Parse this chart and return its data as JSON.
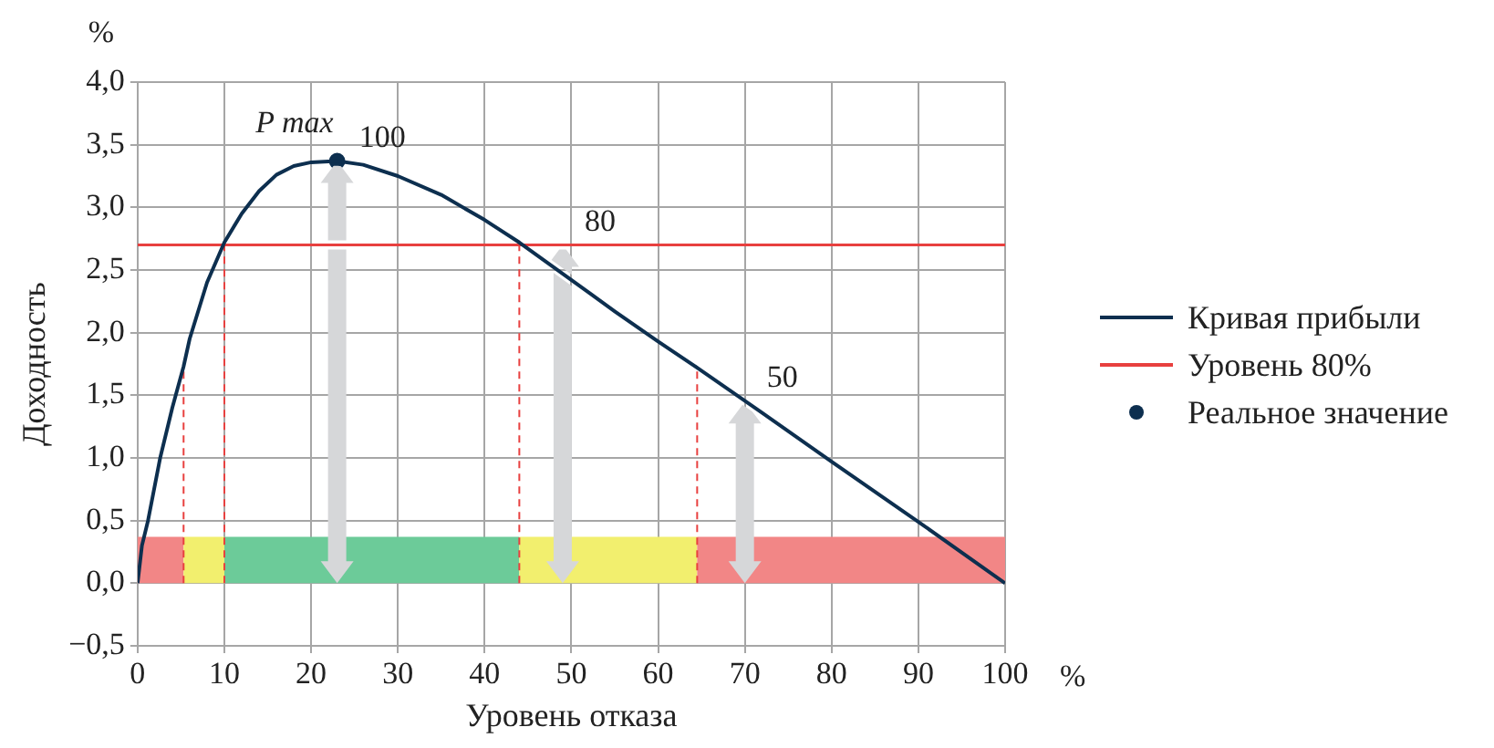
{
  "chart_data": {
    "type": "line",
    "xlabel": "Уровень отказа",
    "ylabel": "Доходность",
    "xlim": [
      0,
      100
    ],
    "xticks": [
      0,
      10,
      20,
      30,
      40,
      50,
      60,
      70,
      80,
      90,
      100
    ],
    "ylim": [
      -0.5,
      4
    ],
    "yticks": [
      {
        "value": -0.5,
        "label": "−0,5"
      },
      {
        "value": 0,
        "label": "0,0"
      },
      {
        "value": 0.5,
        "label": "0,5"
      },
      {
        "value": 1,
        "label": "1,0"
      },
      {
        "value": 1.5,
        "label": "1,5"
      },
      {
        "value": 2,
        "label": "2,0"
      },
      {
        "value": 2.5,
        "label": "2,5"
      },
      {
        "value": 3,
        "label": "3,0"
      },
      {
        "value": 3.5,
        "label": "3,5"
      },
      {
        "value": 4,
        "label": "4,0"
      }
    ],
    "grid": true,
    "legend": "right",
    "series": [
      {
        "name": "Кривая прибыли",
        "color": "#0d2f4f",
        "marker": "none",
        "x": [
          0,
          0.5,
          1.2,
          2.6,
          4,
          5.3,
          6,
          8,
          10,
          12,
          14,
          16,
          18,
          20,
          23,
          26,
          30,
          35,
          40,
          44,
          52,
          55,
          60,
          64.5,
          72,
          80,
          90,
          100
        ],
        "values": [
          0,
          0.3,
          0.5,
          1,
          1.4,
          1.73,
          1.95,
          2.4,
          2.72,
          2.95,
          3.13,
          3.26,
          3.33,
          3.36,
          3.37,
          3.34,
          3.25,
          3.1,
          2.9,
          2.72,
          2.32,
          2.17,
          1.93,
          1.72,
          1.36,
          0.97,
          0.49,
          0
        ]
      },
      {
        "name": "Уровень 80%",
        "type": "line",
        "color": "#e8403f",
        "marker": "none",
        "x": [
          0,
          100
        ],
        "values": [
          2.7,
          2.7
        ]
      },
      {
        "name": "Реальное значение",
        "type": "scatter",
        "color": "#0d2f4f",
        "marker": "circle",
        "x": [
          23
        ],
        "values": [
          3.37
        ]
      }
    ],
    "ref_lines": [
      {
        "axis": "x",
        "value": 5.3,
        "color": "#e8403f",
        "line_style": "dashed"
      },
      {
        "axis": "x",
        "value": 10,
        "color": "#e8403f",
        "line_style": "dashed"
      },
      {
        "axis": "x",
        "value": 44,
        "color": "#e8403f",
        "line_style": "dashed"
      },
      {
        "axis": "x",
        "value": 64.5,
        "color": "#e8403f",
        "line_style": "dashed"
      }
    ],
    "bands": [
      {
        "axis": "x",
        "from": 0,
        "to": 5.3,
        "color": "#f28686"
      },
      {
        "axis": "x",
        "from": 5.3,
        "to": 10,
        "color": "#f2ef6e"
      },
      {
        "axis": "x",
        "from": 10,
        "to": 44,
        "color": "#6ccb99"
      },
      {
        "axis": "x",
        "from": 44,
        "to": 64.5,
        "color": "#f2ef6e"
      },
      {
        "axis": "x",
        "from": 64.5,
        "to": 100,
        "color": "#f28686"
      }
    ],
    "annotations": [
      {
        "text": "P max",
        "x": 23,
        "y": 3.37
      },
      {
        "text": "100",
        "x": 23,
        "y": 3.37
      },
      {
        "text": "80",
        "x": 49,
        "y": 2.7
      },
      {
        "text": "50",
        "x": 70,
        "y": 1.45
      },
      "%",
      "%"
    ]
  }
}
